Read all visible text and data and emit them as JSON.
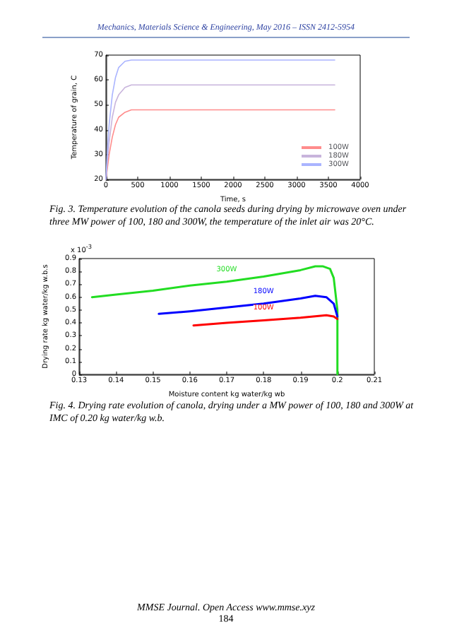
{
  "chart_data": [
    {
      "type": "line",
      "xlabel": "Time, s",
      "ylabel": "Temperature of grain, C",
      "xlim": [
        0,
        4000
      ],
      "xticks": [
        0,
        500,
        1000,
        1500,
        2000,
        2500,
        3000,
        3500,
        4000
      ],
      "ylim": [
        20,
        70
      ],
      "yticks": [
        20,
        30,
        40,
        50,
        60,
        70
      ],
      "grid": false,
      "legend": "bottom right",
      "marker": "none",
      "annotations": [
        "Mechanics, Materials Science & Engineering, May 2016 – ISSN 2412-5954",
        "Fig. 3. Temperature evolution of the canola seeds during drying by microwave oven under three MW power of 100, 180 and 300W, the temperature of the inlet air was 20°C."
      ],
      "x": [
        0,
        25,
        50,
        100,
        150,
        200,
        300,
        400,
        600,
        3600
      ],
      "series": [
        {
          "name": "100W",
          "color": "#ff8c8c",
          "values": [
            20,
            25,
            30,
            37,
            42,
            45,
            47,
            48,
            48,
            48
          ]
        },
        {
          "name": "180W",
          "color": "#c8b4dc",
          "values": [
            20,
            28,
            35,
            45,
            51,
            54,
            57,
            58,
            58,
            58
          ]
        },
        {
          "name": "300W",
          "color": "#aab4ff",
          "values": [
            20,
            32,
            42,
            54,
            61,
            65,
            67.5,
            68,
            68,
            68
          ]
        }
      ]
    },
    {
      "type": "line",
      "xlabel": "Moisture content kg water/kg wb",
      "ylabel": "Drying rate kg water/kg w.b.s",
      "xlim": [
        0.13,
        0.21
      ],
      "xticks": [
        0.13,
        0.14,
        0.15,
        0.16,
        0.17,
        0.18,
        0.19,
        0.2,
        0.21
      ],
      "ylim": [
        0,
        0.9
      ],
      "yticks": [
        0,
        0.1,
        0.2,
        0.3,
        0.4,
        0.5,
        0.6,
        0.7,
        0.8,
        0.9
      ],
      "grid": false,
      "legend": false,
      "marker": "none",
      "annotations": [
        "x 10$^{-3}$",
        "Fig. 4. Drying rate evolution of canola, drying under a MW power of 100, 180 and 300W at IMC of 0.20 kg water/kg w.b.",
        "MMSE Journal. Open Access www.mmse.xyz",
        "184"
      ],
      "series": [
        {
          "name": "300W",
          "color": "#22dd22",
          "x": [
            0.1335,
            0.14,
            0.15,
            0.16,
            0.17,
            0.18,
            0.19,
            0.194,
            0.196,
            0.198,
            0.199,
            0.2,
            0.2
          ],
          "values": [
            0.6,
            0.62,
            0.65,
            0.69,
            0.72,
            0.76,
            0.81,
            0.84,
            0.84,
            0.82,
            0.75,
            0.5,
            0
          ]
        },
        {
          "name": "180W",
          "color": "#0000ff",
          "x": [
            0.1516,
            0.16,
            0.17,
            0.18,
            0.19,
            0.194,
            0.197,
            0.199,
            0.2
          ],
          "values": [
            0.47,
            0.49,
            0.52,
            0.55,
            0.59,
            0.61,
            0.6,
            0.55,
            0.45
          ]
        },
        {
          "name": "100W",
          "color": "#ff0000",
          "x": [
            0.161,
            0.17,
            0.18,
            0.19,
            0.197,
            0.199,
            0.2
          ],
          "values": [
            0.38,
            0.4,
            0.42,
            0.44,
            0.46,
            0.45,
            0.43
          ]
        }
      ]
    }
  ]
}
